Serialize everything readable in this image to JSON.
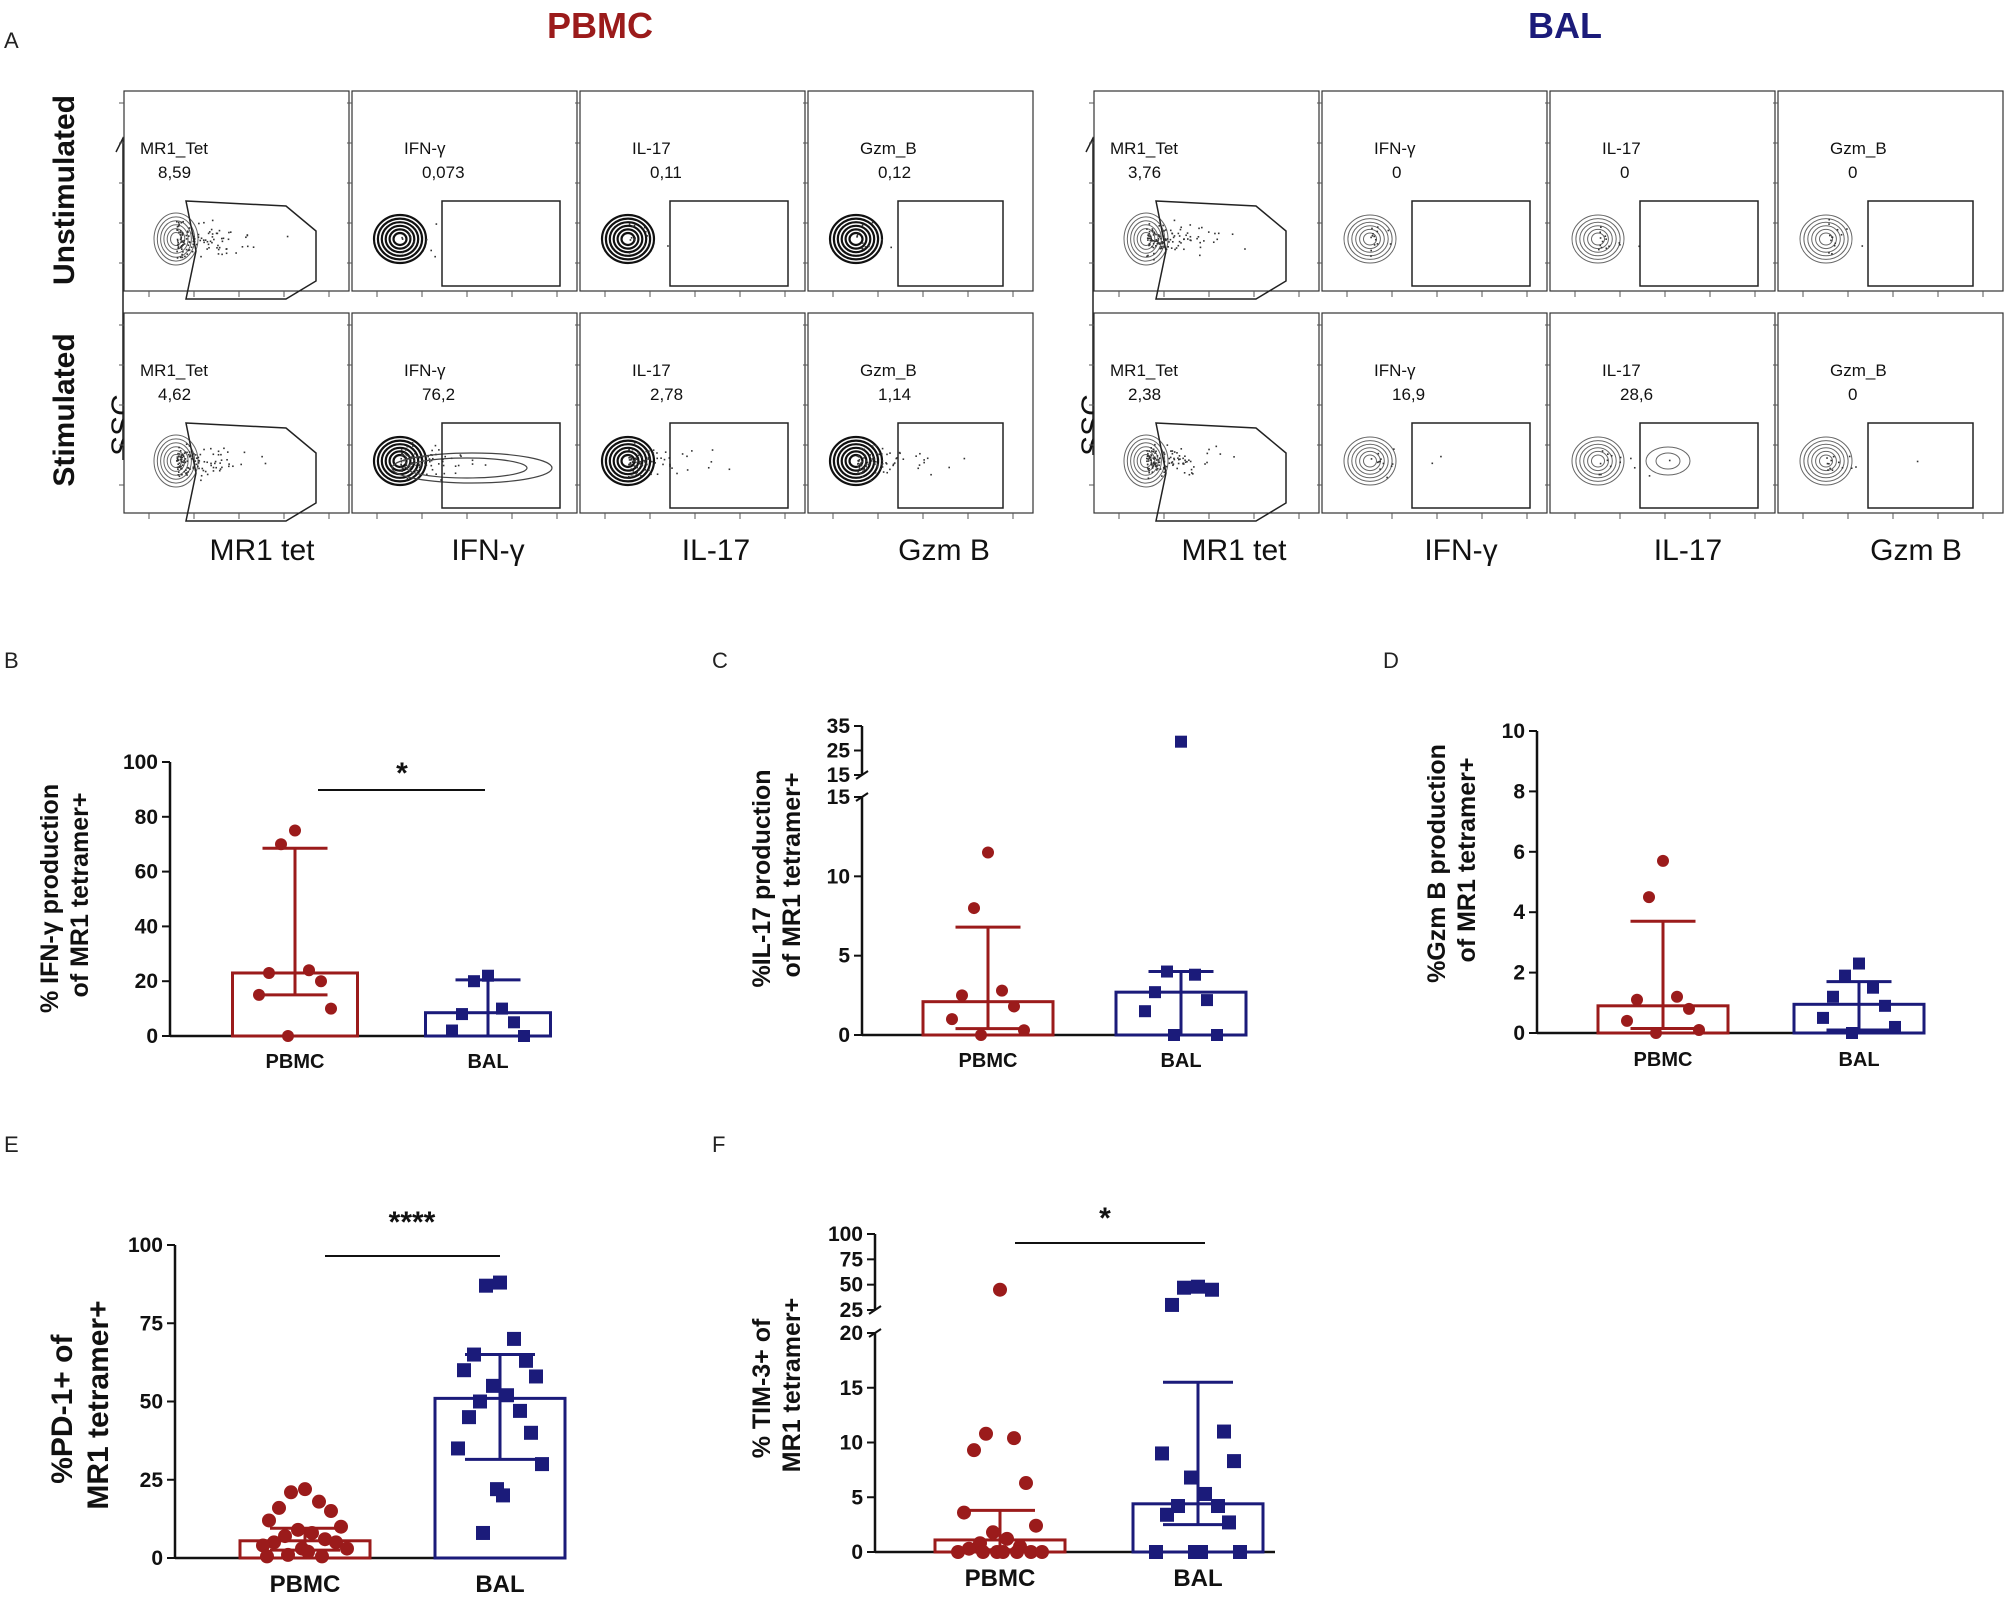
{
  "colors": {
    "pbmc": "#9b1b1b",
    "bal": "#1b1b7a",
    "axis": "#111111"
  },
  "panel_a": {
    "label": "A",
    "pbmc_title": "PBMC",
    "bal_title": "BAL",
    "row_labels": [
      "Unstimulated",
      "Stimulated"
    ],
    "y_axis_label": "SSC",
    "x_labels": [
      "MR1 tet",
      "IFN-γ",
      "IL-17",
      "Gzm B"
    ],
    "pbmc_gates": [
      [
        {
          "name": "MR1_Tet",
          "value": "8,59"
        },
        {
          "name": "IFN-γ",
          "value": "0,073"
        },
        {
          "name": "IL-17",
          "value": "0,11"
        },
        {
          "name": "Gzm_B",
          "value": "0,12"
        }
      ],
      [
        {
          "name": "MR1_Tet",
          "value": "4,62"
        },
        {
          "name": "IFN-γ",
          "value": "76,2"
        },
        {
          "name": "IL-17",
          "value": "2,78"
        },
        {
          "name": "Gzm_B",
          "value": "1,14"
        }
      ]
    ],
    "bal_gates": [
      [
        {
          "name": "MR1_Tet",
          "value": "3,76"
        },
        {
          "name": "IFN-γ",
          "value": "0"
        },
        {
          "name": "IL-17",
          "value": "0"
        },
        {
          "name": "Gzm_B",
          "value": "0"
        }
      ],
      [
        {
          "name": "MR1_Tet",
          "value": "2,38"
        },
        {
          "name": "IFN-γ",
          "value": "16,9"
        },
        {
          "name": "IL-17",
          "value": "28,6"
        },
        {
          "name": "Gzm_B",
          "value": "0"
        }
      ]
    ]
  },
  "chart_data": [
    {
      "panel": "B",
      "type": "bar",
      "categories": [
        "PBMC",
        "BAL"
      ],
      "ylabel": "% IFN-γ production of MR1 tetramer+",
      "ylim": [
        0,
        100
      ],
      "yticks": [
        0,
        20,
        40,
        60,
        80,
        100
      ],
      "series": [
        {
          "name": "PBMC",
          "median": 23,
          "err_low": 15,
          "err_high": 68.5,
          "points": [
            75,
            70,
            24,
            23,
            20,
            15,
            10,
            0
          ]
        },
        {
          "name": "BAL",
          "median": 8.5,
          "err_low": 0,
          "err_high": 20.5,
          "points": [
            22,
            20,
            10,
            8,
            5,
            2,
            0
          ]
        }
      ],
      "significance": "*"
    },
    {
      "panel": "C",
      "type": "bar",
      "categories": [
        "PBMC",
        "BAL"
      ],
      "ylabel": "%IL-17 production of MR1 tetramer+",
      "ylim": [
        0,
        15
      ],
      "yticks": [
        0,
        5,
        10,
        15
      ],
      "break_yticks": [
        15,
        25,
        35
      ],
      "series": [
        {
          "name": "PBMC",
          "median": 2.1,
          "err_low": 0.4,
          "err_high": 6.8,
          "points": [
            11.5,
            8,
            2.8,
            2.5,
            1.8,
            1,
            0.3,
            0
          ]
        },
        {
          "name": "BAL",
          "median": 2.7,
          "err_low": 0,
          "err_high": 4,
          "points": [
            28.6,
            4,
            3.8,
            2.7,
            2.2,
            1.5,
            0,
            0
          ]
        }
      ]
    },
    {
      "panel": "D",
      "type": "bar",
      "categories": [
        "PBMC",
        "BAL"
      ],
      "ylabel": "%Gzm B production of MR1 tetramer+",
      "ylim": [
        0,
        10
      ],
      "yticks": [
        0,
        2,
        4,
        6,
        8,
        10
      ],
      "series": [
        {
          "name": "PBMC",
          "median": 0.9,
          "err_low": 0.15,
          "err_high": 3.7,
          "points": [
            5.7,
            4.5,
            1.2,
            1.1,
            0.8,
            0.4,
            0.1,
            0
          ]
        },
        {
          "name": "BAL",
          "median": 0.95,
          "err_low": 0.1,
          "err_high": 1.7,
          "points": [
            2.3,
            1.9,
            1.5,
            1.2,
            0.9,
            0.5,
            0.2,
            0
          ]
        }
      ]
    },
    {
      "panel": "E",
      "type": "bar",
      "categories": [
        "PBMC",
        "BAL"
      ],
      "ylabel": "%PD-1+ of MR1 tetramer+",
      "ylim": [
        0,
        100
      ],
      "yticks": [
        0,
        25,
        50,
        75,
        100
      ],
      "series": [
        {
          "name": "PBMC",
          "median": 5.5,
          "err_low": 2.5,
          "err_high": 9.5,
          "points": [
            22,
            21,
            18,
            16,
            15,
            12,
            10,
            9,
            8,
            7,
            6,
            5,
            5,
            4,
            3,
            3,
            2,
            1,
            0.5,
            0.5
          ]
        },
        {
          "name": "BAL",
          "median": 51,
          "err_low": 31.5,
          "err_high": 65,
          "points": [
            88,
            87,
            70,
            65,
            63,
            60,
            58,
            55,
            52,
            50,
            47,
            45,
            40,
            35,
            30,
            22,
            20,
            8
          ]
        }
      ],
      "significance": "****"
    },
    {
      "panel": "F",
      "type": "bar",
      "categories": [
        "PBMC",
        "BAL"
      ],
      "ylabel": "% TIM-3+ of MR1 tetramer+",
      "ylim": [
        0,
        20
      ],
      "yticks": [
        0,
        5,
        10,
        15,
        20
      ],
      "break_yticks": [
        25,
        50,
        75,
        100
      ],
      "series": [
        {
          "name": "PBMC",
          "median": 1.1,
          "err_low": 0.2,
          "err_high": 3.8,
          "points": [
            45,
            10.8,
            10.4,
            9.3,
            6.3,
            3.6,
            2.4,
            1.8,
            1.2,
            0.8,
            0.5,
            0.3,
            0,
            0,
            0,
            0,
            0,
            0,
            0
          ]
        },
        {
          "name": "BAL",
          "median": 4.4,
          "err_low": 2.5,
          "err_high": 15.5,
          "points": [
            48,
            47,
            45,
            30,
            11,
            9,
            8.3,
            6.8,
            5.3,
            4.2,
            4.2,
            3.4,
            2.7,
            0,
            0,
            0,
            0
          ]
        }
      ],
      "significance": "*"
    }
  ]
}
